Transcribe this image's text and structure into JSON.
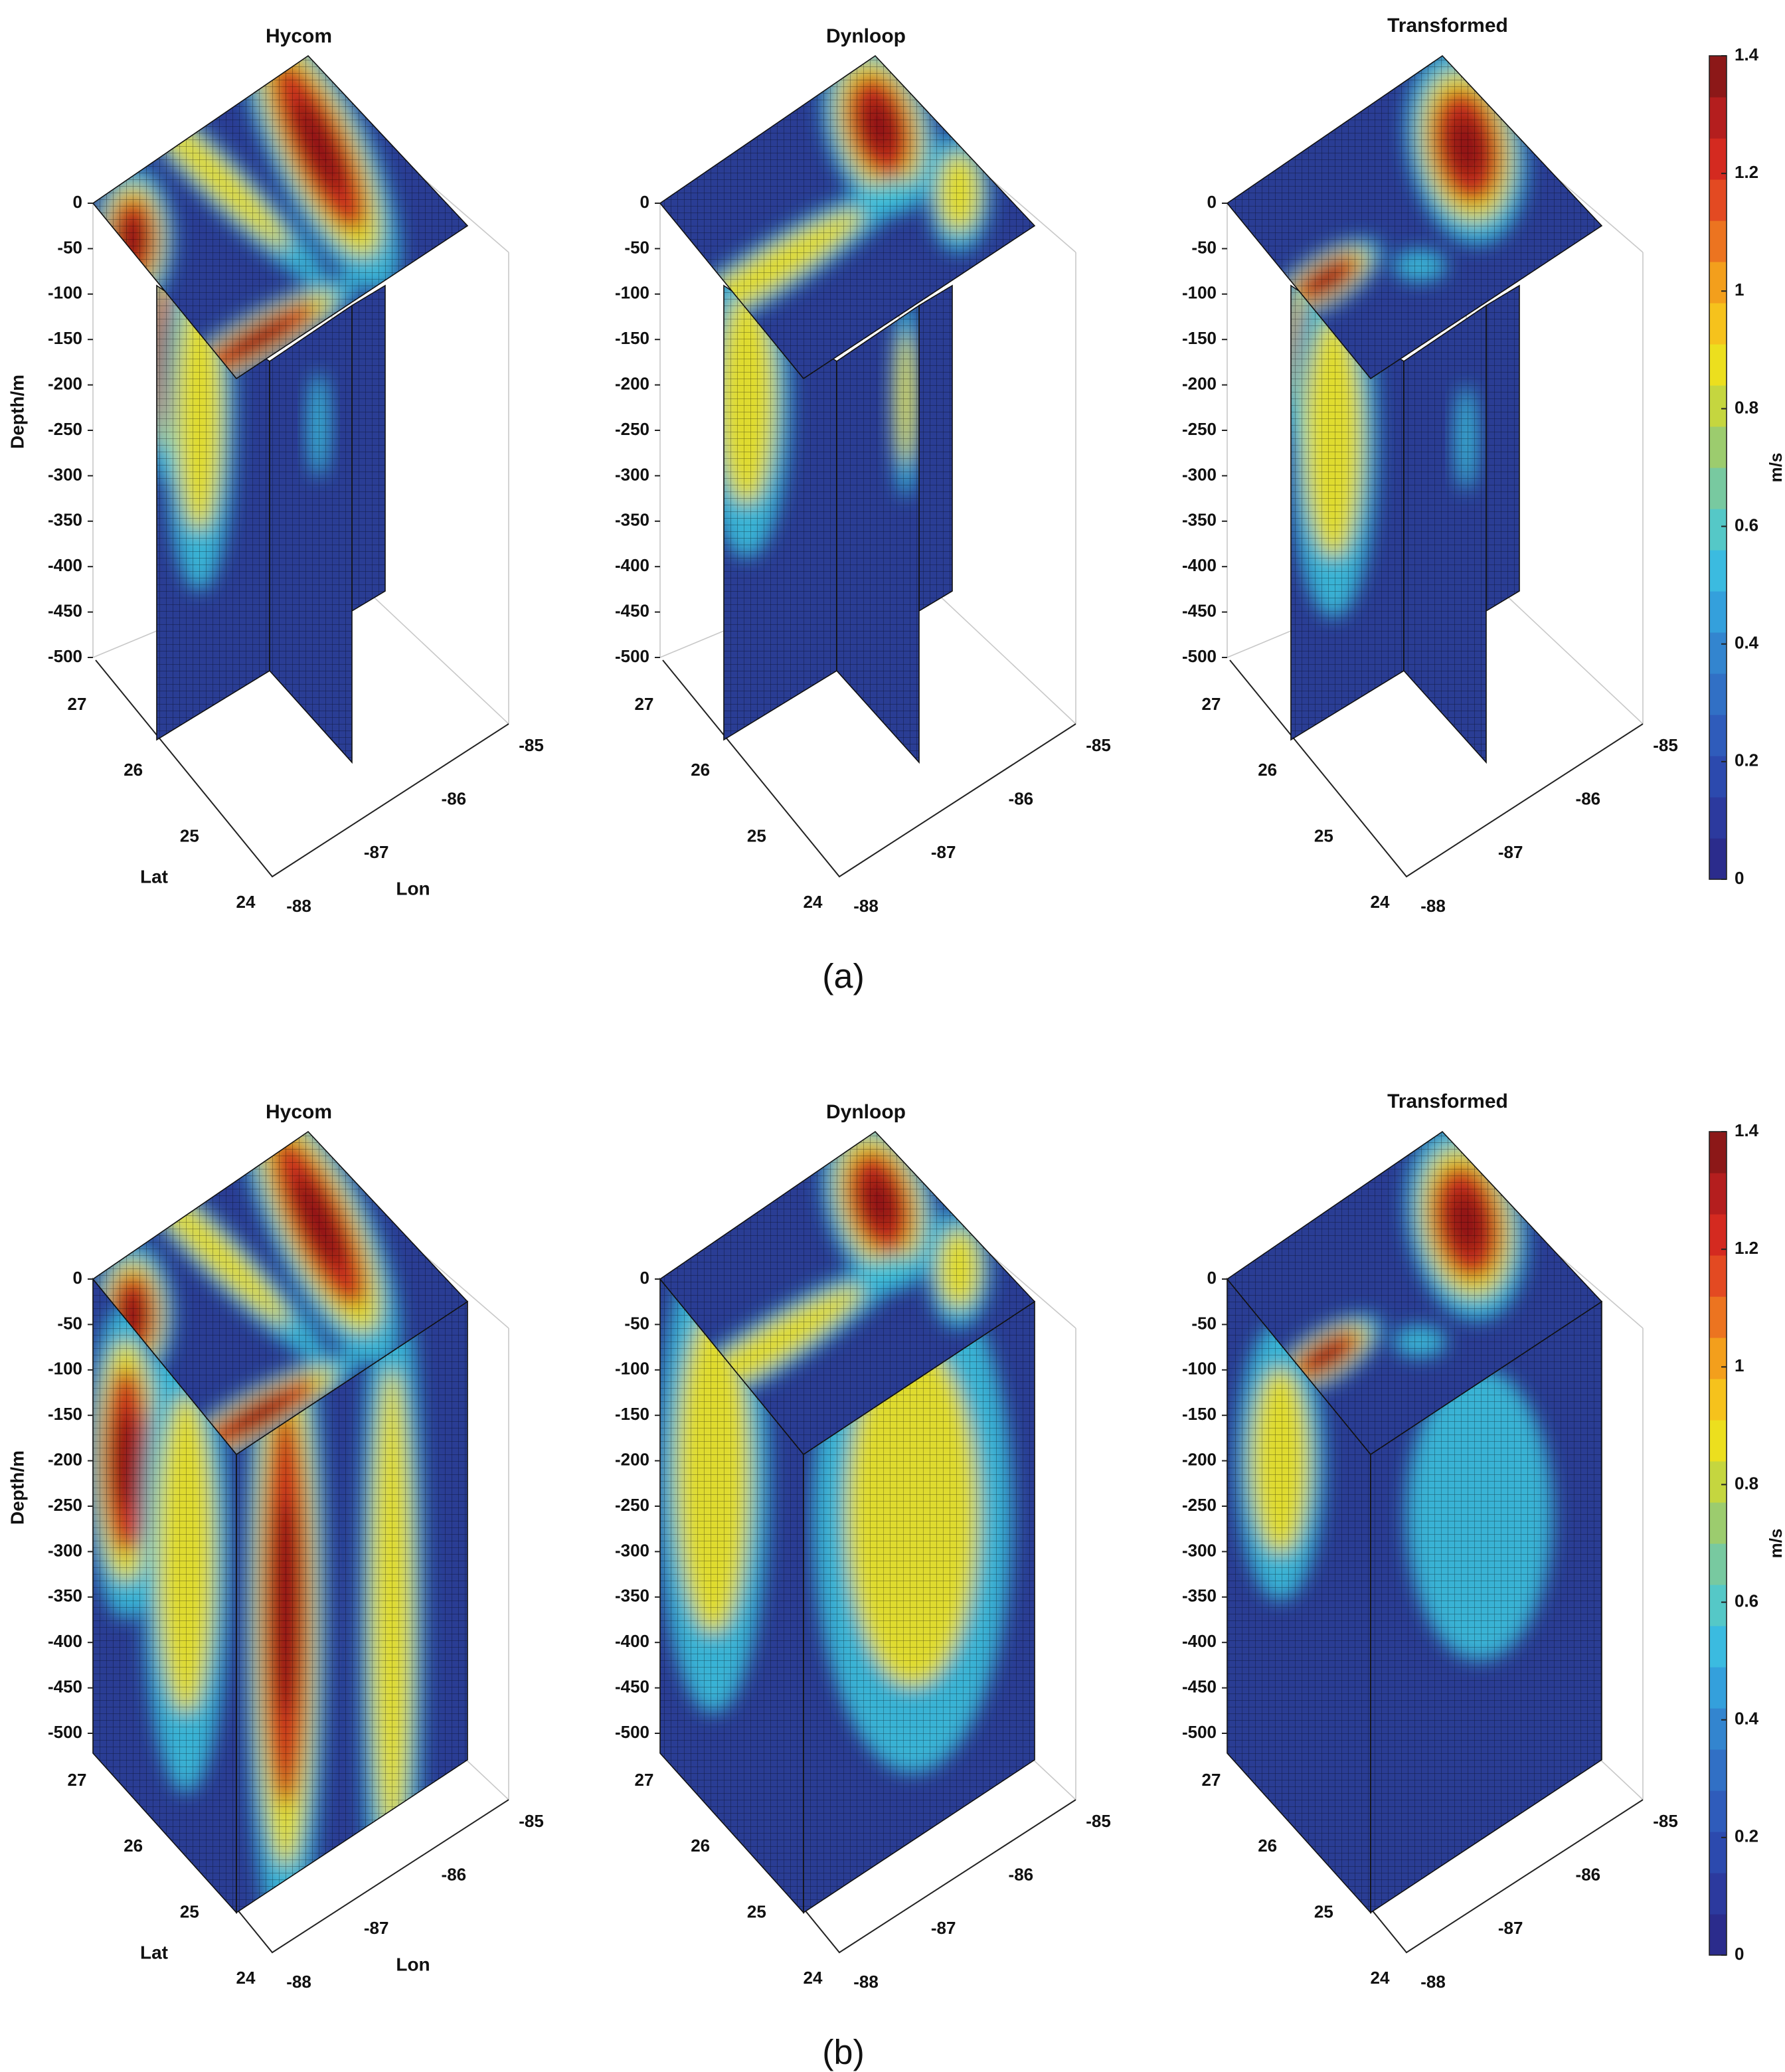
{
  "axes": {
    "z_label": "Depth/m",
    "x_label": "Lat",
    "y_label": "Lon",
    "zlim": [
      -500,
      0
    ],
    "zticks": [
      0,
      -50,
      -100,
      -150,
      -200,
      -250,
      -300,
      -350,
      -400,
      -450,
      -500
    ],
    "lat_lim": [
      24,
      27
    ],
    "lat_ticks": [
      24,
      25,
      26,
      27
    ],
    "lon_lim": [
      -88,
      -85
    ],
    "lon_ticks": [
      -88,
      -87,
      -86,
      -85
    ]
  },
  "colorbar": {
    "label": "m/s",
    "lim": [
      0,
      1.4
    ],
    "ticks": [
      0,
      0.2,
      0.4,
      0.6,
      0.8,
      1,
      1.2,
      1.4
    ]
  },
  "figures": [
    {
      "label": "(a)",
      "titles": [
        "Hycom",
        "Dynloop",
        "Transformed"
      ]
    },
    {
      "label": "(b)",
      "titles": [
        "Hycom",
        "Dynloop",
        "Transformed"
      ]
    }
  ]
}
